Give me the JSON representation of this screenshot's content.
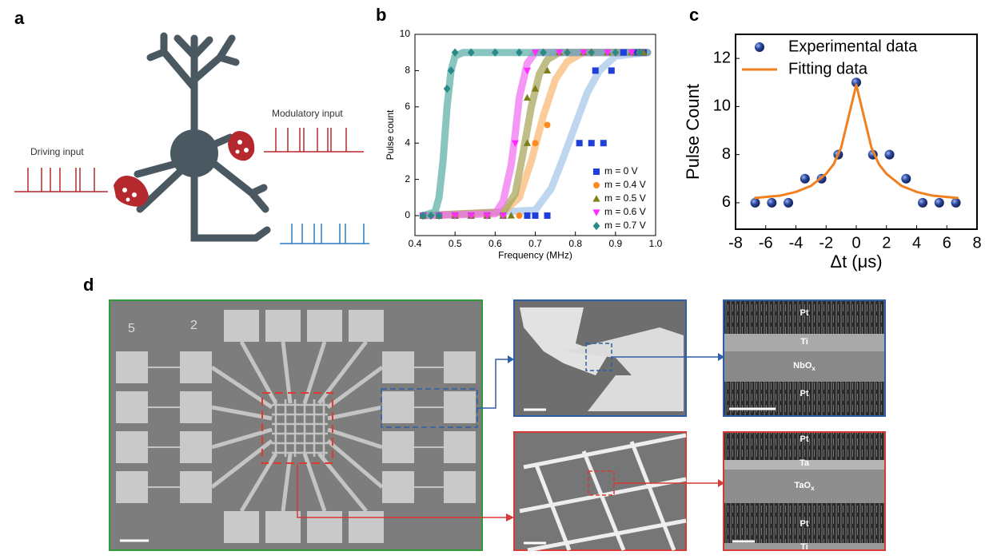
{
  "panel_labels": [
    "a",
    "b",
    "c",
    "d"
  ],
  "neuron": {
    "driving_label": "Driving input",
    "modulatory_label": "Modulatory input"
  },
  "chart_data": [
    {
      "type": "scatter",
      "x_label": "Frequency (MHz)",
      "y_label": "Pulse count",
      "xlim": [
        0.4,
        1.0
      ],
      "ylim": [
        -1.1,
        10
      ],
      "xticks": [
        0.4,
        0.5,
        0.6,
        0.7,
        0.8,
        0.9,
        {
          "value": 1,
          "label": "1.0"
        }
      ],
      "yticks": [
        0,
        2,
        4,
        6,
        8,
        10
      ],
      "legend": "lower right",
      "series": [
        {
          "name": "m = 0 V",
          "color": "#1f3fdb",
          "marker": "square",
          "x": [
            0.42,
            0.46,
            0.5,
            0.54,
            0.58,
            0.62,
            0.68,
            0.7,
            0.73,
            0.81,
            0.84,
            0.87,
            0.85,
            0.89,
            0.92,
            0.95,
            0.97
          ],
          "values": [
            0,
            0,
            0,
            0,
            0,
            0,
            0,
            0,
            0,
            4,
            4,
            4,
            8,
            8,
            9,
            9,
            9
          ],
          "fit": {
            "color": "#a9c8ec",
            "x": [
              0.42,
              0.7,
              0.74,
              0.77,
              0.8,
              0.83,
              0.86,
              0.9,
              0.98
            ],
            "values": [
              0,
              0.3,
              1.5,
              3.2,
              5,
              6.8,
              8,
              8.8,
              9
            ]
          }
        },
        {
          "name": "m = 0.4 V",
          "color": "#ff8a1f",
          "marker": "circle",
          "x": [
            0.42,
            0.46,
            0.5,
            0.54,
            0.58,
            0.62,
            0.66,
            0.7,
            0.73,
            0.78,
            0.84,
            0.9,
            0.96
          ],
          "values": [
            0,
            0,
            0,
            0,
            0,
            0,
            0,
            4,
            5,
            9,
            9,
            9,
            9
          ],
          "fit": {
            "color": "#f9bb78",
            "x": [
              0.42,
              0.62,
              0.66,
              0.69,
              0.72,
              0.75,
              0.78,
              0.82,
              0.98
            ],
            "values": [
              0,
              0.2,
              1,
              3,
              5.5,
              7.5,
              8.5,
              9,
              9
            ]
          }
        },
        {
          "name": "m = 0.5 V",
          "color": "#7f7f1a",
          "marker": "triangle-up",
          "x": [
            0.42,
            0.46,
            0.5,
            0.54,
            0.58,
            0.62,
            0.64,
            0.68,
            0.68,
            0.7,
            0.73,
            0.76,
            0.82,
            0.88,
            0.94,
            0.97
          ],
          "values": [
            0,
            0,
            0,
            0,
            0,
            0,
            0,
            4,
            6.5,
            7,
            8,
            9,
            9,
            9,
            9,
            9
          ],
          "fit": {
            "color": "#aaa862",
            "x": [
              0.42,
              0.62,
              0.65,
              0.67,
              0.69,
              0.71,
              0.73,
              0.76,
              0.98
            ],
            "values": [
              0,
              0.2,
              1.2,
              3.5,
              6,
              7.8,
              8.6,
              9,
              9
            ]
          }
        },
        {
          "name": "m = 0.6 V",
          "color": "#ff2cff",
          "marker": "triangle-down",
          "x": [
            0.42,
            0.46,
            0.5,
            0.54,
            0.58,
            0.62,
            0.65,
            0.68,
            0.7,
            0.76,
            0.82,
            0.88,
            0.94
          ],
          "values": [
            0,
            0,
            0,
            0,
            0,
            0,
            4,
            8,
            9,
            9,
            9,
            9,
            9
          ],
          "fit": {
            "color": "#f274f2",
            "x": [
              0.42,
              0.6,
              0.62,
              0.64,
              0.65,
              0.66,
              0.68,
              0.7,
              0.98
            ],
            "values": [
              0,
              0.1,
              0.8,
              2.8,
              4.5,
              6.5,
              8.4,
              9,
              9
            ]
          }
        },
        {
          "name": "m = 0.7 V",
          "color": "#2b8a88",
          "marker": "diamond",
          "x": [
            0.42,
            0.44,
            0.46,
            0.48,
            0.49,
            0.5,
            0.54,
            0.6,
            0.66,
            0.72,
            0.78,
            0.84,
            0.9,
            0.96
          ],
          "values": [
            0,
            0,
            0,
            7,
            8,
            9,
            9,
            9,
            9,
            9,
            9,
            9,
            9,
            9
          ],
          "fit": {
            "color": "#62b2aa",
            "x": [
              0.42,
              0.45,
              0.46,
              0.47,
              0.48,
              0.49,
              0.5,
              0.52,
              0.98
            ],
            "values": [
              0,
              0.2,
              1,
              3,
              6,
              8,
              8.8,
              9,
              9
            ]
          }
        }
      ]
    },
    {
      "type": "scatter",
      "x_label": "Δt (μs)",
      "y_label": "Pulse Count",
      "xlim": [
        -8,
        8
      ],
      "ylim": [
        4.9,
        13
      ],
      "xticks": [
        -8,
        -6,
        -4,
        -2,
        0,
        2,
        4,
        6,
        8
      ],
      "yticks": [
        6,
        8,
        10,
        12
      ],
      "legend": "upper left",
      "series": [
        {
          "name": "Experimental data",
          "color": "#2b4aa0",
          "marker": "sphere",
          "x": [
            -6.7,
            -5.6,
            -4.5,
            -3.4,
            -2.3,
            -1.2,
            0,
            1.1,
            2.2,
            3.3,
            4.4,
            5.5,
            6.6
          ],
          "values": [
            6,
            6,
            6,
            7,
            7,
            8,
            11,
            8,
            8,
            7,
            6,
            6,
            6
          ]
        },
        {
          "name": "Fitting data",
          "color": "#f08020",
          "marker": "line",
          "x": [
            -6.7,
            -5,
            -4,
            -3,
            -2,
            -1.5,
            -1,
            -0.5,
            0,
            0.5,
            1,
            1.5,
            2,
            3,
            4,
            5,
            6.7
          ],
          "values": [
            6.2,
            6.3,
            6.45,
            6.7,
            7.2,
            7.6,
            8.3,
            9.6,
            10.9,
            9.6,
            8.3,
            7.6,
            7.2,
            6.7,
            6.45,
            6.3,
            6.2
          ]
        }
      ]
    }
  ],
  "devices": {
    "chip_labels": [
      "5",
      "2"
    ],
    "nb_stack": [
      {
        "text": "Pt"
      },
      {
        "text": "Ti"
      },
      {
        "text": "NbO",
        "sub": "x"
      },
      {
        "text": "Pt"
      }
    ],
    "ta_stack": [
      {
        "text": "Pt"
      },
      {
        "text": "Ta"
      },
      {
        "text": "TaO",
        "sub": "x"
      },
      {
        "text": "Pt"
      },
      {
        "text": "Ti"
      }
    ]
  }
}
